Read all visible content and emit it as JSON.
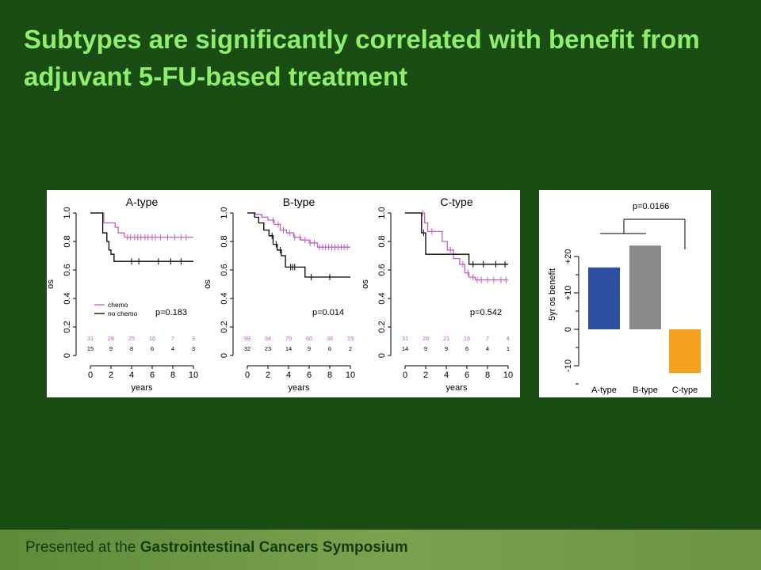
{
  "slide": {
    "title": "Subtypes are significantly correlated with benefit from adjuvant 5-FU-based treatment",
    "footer_prefix": "Presented at the ",
    "footer_name": "Gastrointestinal Cancers Symposium"
  },
  "colors": {
    "background": "#1a4d14",
    "title": "#8ef06a",
    "chemo": "#c060c0",
    "no_chemo": "#000000",
    "A_bar": "#2e4fa0",
    "B_bar": "#8a8a8a",
    "C_bar": "#f4a11d"
  },
  "chart_data": [
    {
      "type": "line",
      "title": "A-type",
      "xlabel": "years",
      "ylabel": "os",
      "xlim": [
        0,
        10
      ],
      "ylim": [
        0,
        1
      ],
      "xticks": [
        0,
        2,
        4,
        6,
        8,
        10
      ],
      "yticks": [
        0,
        0.2,
        0.4,
        0.6,
        0.8,
        1.0
      ],
      "ytick_labels": [
        "0",
        "0.2",
        "0.4",
        "0.6",
        "0.8",
        "1.0"
      ],
      "pvalue": "p=0.183",
      "legend": [
        "chemo",
        "no chemo"
      ],
      "series": [
        {
          "name": "chemo",
          "color": "#c060c0",
          "x": [
            0,
            1.0,
            1.3,
            2.4,
            2.7,
            3.3,
            10
          ],
          "y": [
            1.0,
            1.0,
            0.93,
            0.9,
            0.86,
            0.83,
            0.83
          ],
          "censor": [
            3.6,
            3.9,
            4.3,
            4.6,
            4.9,
            5.3,
            5.6,
            6.0,
            6.3,
            6.8,
            7.5,
            8.2,
            8.8,
            9.3
          ]
        },
        {
          "name": "no chemo",
          "color": "#000000",
          "x": [
            0,
            0.9,
            1.2,
            1.6,
            1.8,
            2.0,
            2.3,
            10
          ],
          "y": [
            1.0,
            1.0,
            0.86,
            0.8,
            0.74,
            0.71,
            0.66,
            0.66
          ],
          "censor": [
            4.0,
            4.7,
            6.6,
            7.8,
            8.8
          ]
        }
      ],
      "at_risk": [
        {
          "series": "chemo",
          "values": [
            "31",
            "28",
            "25",
            "16",
            "7",
            "3"
          ]
        },
        {
          "series": "no chemo",
          "values": [
            "15",
            "9",
            "8",
            "6",
            "4",
            "3"
          ]
        }
      ]
    },
    {
      "type": "line",
      "title": "B-type",
      "xlabel": "years",
      "ylabel": "os",
      "xlim": [
        0,
        10
      ],
      "ylim": [
        0,
        1
      ],
      "xticks": [
        0,
        2,
        4,
        6,
        8,
        10
      ],
      "yticks": [
        0,
        0.2,
        0.4,
        0.6,
        0.8,
        1.0
      ],
      "ytick_labels": [
        "0",
        "0.2",
        "0.4",
        "0.6",
        "0.8",
        "1.0"
      ],
      "pvalue": "p=0.014",
      "series": [
        {
          "name": "chemo",
          "color": "#c060c0",
          "x": [
            0,
            0.8,
            1.4,
            2.0,
            2.6,
            3.2,
            3.8,
            4.5,
            5.2,
            6.0,
            6.8,
            10
          ],
          "y": [
            1.0,
            0.99,
            0.97,
            0.95,
            0.92,
            0.88,
            0.86,
            0.83,
            0.81,
            0.79,
            0.76,
            0.76
          ],
          "censor": [
            2.5,
            3.0,
            3.5,
            4.1,
            4.6,
            5.1,
            5.6,
            6.1,
            6.5,
            7.0,
            7.3,
            7.6,
            7.9,
            8.2,
            8.5,
            8.8,
            9.1,
            9.4,
            9.7
          ]
        },
        {
          "name": "no chemo",
          "color": "#000000",
          "x": [
            0,
            0.7,
            1.1,
            1.6,
            2.1,
            2.5,
            2.9,
            3.3,
            3.7,
            5.6,
            10
          ],
          "y": [
            1.0,
            0.97,
            0.93,
            0.88,
            0.84,
            0.78,
            0.74,
            0.7,
            0.62,
            0.55,
            0.55
          ],
          "censor": [
            2.4,
            2.8,
            3.2,
            4.2,
            4.4,
            4.6,
            6.2,
            8.0
          ]
        }
      ],
      "at_risk": [
        {
          "series": "chemo",
          "values": [
            "99",
            "94",
            "79",
            "60",
            "38",
            "15"
          ]
        },
        {
          "series": "no chemo",
          "values": [
            "32",
            "23",
            "14",
            "9",
            "6",
            "2"
          ]
        }
      ]
    },
    {
      "type": "line",
      "title": "C-type",
      "xlabel": "years",
      "ylabel": "os",
      "xlim": [
        0,
        10
      ],
      "ylim": [
        0,
        1
      ],
      "xticks": [
        0,
        2,
        4,
        6,
        8,
        10
      ],
      "yticks": [
        0,
        0.2,
        0.4,
        0.6,
        0.8,
        1.0
      ],
      "ytick_labels": [
        "0",
        "0.2",
        "0.4",
        "0.6",
        "0.8",
        "1.0"
      ],
      "pvalue": "p=0.542",
      "series": [
        {
          "name": "chemo",
          "color": "#c060c0",
          "x": [
            0,
            1.3,
            1.9,
            2.2,
            3.6,
            4.1,
            4.7,
            5.3,
            5.8,
            6.2,
            6.8,
            10
          ],
          "y": [
            1.0,
            1.0,
            0.93,
            0.87,
            0.8,
            0.74,
            0.68,
            0.64,
            0.58,
            0.55,
            0.53,
            0.53
          ],
          "censor": [
            1.7,
            2.6,
            4.4,
            5.6,
            6.1,
            6.6,
            7.0,
            7.4,
            8.0,
            8.6,
            9.3,
            9.8
          ]
        },
        {
          "name": "no chemo",
          "color": "#000000",
          "x": [
            0,
            1.3,
            1.6,
            2.0,
            6.2,
            10
          ],
          "y": [
            1.0,
            1.0,
            0.86,
            0.71,
            0.64,
            0.64
          ],
          "censor": [
            1.8,
            6.6,
            7.6,
            8.8,
            9.7
          ]
        }
      ],
      "at_risk": [
        {
          "series": "chemo",
          "values": [
            "31",
            "28",
            "21",
            "16",
            "7",
            "4"
          ]
        },
        {
          "series": "no chemo",
          "values": [
            "14",
            "9",
            "9",
            "6",
            "4",
            "1"
          ]
        }
      ]
    },
    {
      "type": "bar",
      "categories": [
        "A-type",
        "B-type",
        "C-type"
      ],
      "values": [
        17,
        23,
        -12
      ],
      "colors": [
        "#2e4fa0",
        "#8a8a8a",
        "#f4a11d"
      ],
      "ylabel": "5yr os benefit",
      "yticks": [
        -10,
        0,
        10,
        20
      ],
      "ytick_labels": [
        "-10",
        "0",
        "+10",
        "+20"
      ],
      "ylim": [
        -13,
        24
      ],
      "pvalue": "p=0.0166"
    }
  ]
}
